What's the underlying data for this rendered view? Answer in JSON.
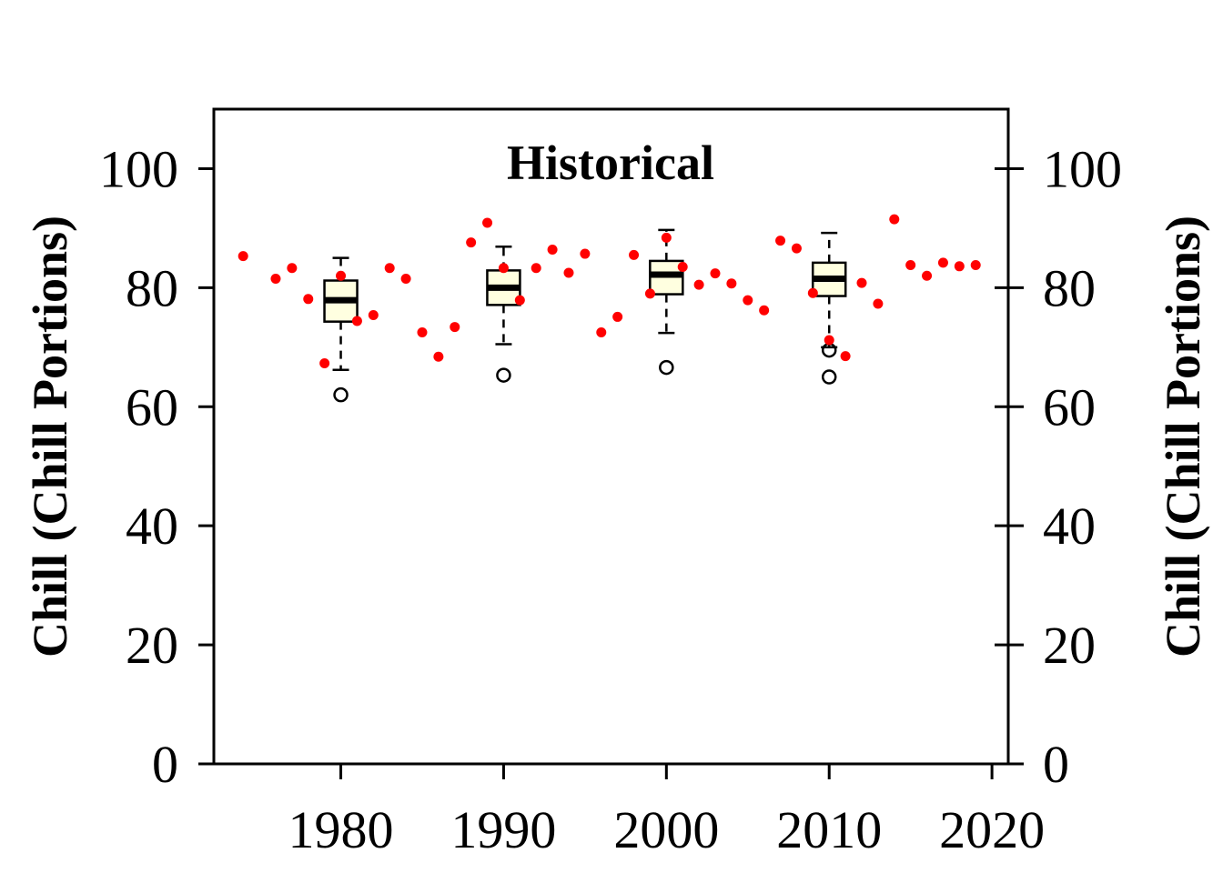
{
  "chart_data": {
    "type": "scatter",
    "title": "Historical",
    "ylabel": "Chill (Chill Portions)",
    "ylabel_right": "Chill (Chill Portions)",
    "xlabel": "",
    "xlim": [
      1972.2,
      2021.0
    ],
    "ylim": [
      0,
      110
    ],
    "x_ticks": [
      1980,
      1990,
      2000,
      2010,
      2020
    ],
    "y_ticks": [
      0,
      20,
      40,
      60,
      80,
      100
    ],
    "grid": false,
    "colors": {
      "points": "#ff0000",
      "box_fill": "#ffffe0",
      "axis": "#000000"
    },
    "series": [
      {
        "kind": "points",
        "x": [
          1974,
          1976,
          1977,
          1978,
          1979,
          1980,
          1981,
          1982,
          1983,
          1984,
          1985,
          1986,
          1987,
          1988,
          1989,
          1990,
          1991,
          1992,
          1993,
          1994,
          1995,
          1996,
          1997,
          1998,
          1999,
          2000,
          2001,
          2002,
          2003,
          2004,
          2005,
          2006,
          2007,
          2008,
          2009,
          2010,
          2011,
          2012,
          2013,
          2014,
          2015,
          2016,
          2017,
          2018,
          2019
        ],
        "y": [
          85.3,
          81.5,
          83.3,
          78.1,
          67.3,
          82.0,
          74.4,
          75.4,
          83.3,
          81.5,
          72.5,
          68.4,
          73.4,
          87.6,
          90.9,
          83.3,
          77.9,
          83.3,
          86.4,
          82.5,
          85.7,
          72.5,
          75.1,
          85.5,
          79.0,
          88.4,
          83.5,
          80.5,
          82.4,
          80.7,
          77.9,
          76.2,
          87.9,
          86.6,
          79.1,
          71.2,
          68.5,
          80.8,
          77.3,
          91.5,
          83.8,
          82.0,
          84.2,
          83.6,
          83.8
        ]
      },
      {
        "kind": "boxplot",
        "boxes": [
          {
            "x": 1980,
            "whisker_low": 66.2,
            "q1": 74.3,
            "median": 77.9,
            "q3": 81.2,
            "whisker_high": 85.0,
            "outliers": [
              62.0
            ]
          },
          {
            "x": 1990,
            "whisker_low": 70.5,
            "q1": 77.1,
            "median": 80.0,
            "q3": 82.9,
            "whisker_high": 86.9,
            "outliers": [
              65.3
            ]
          },
          {
            "x": 2000,
            "whisker_low": 72.4,
            "q1": 78.9,
            "median": 82.2,
            "q3": 84.5,
            "whisker_high": 89.7,
            "outliers": [
              66.6
            ]
          },
          {
            "x": 2010,
            "whisker_low": 70.0,
            "q1": 78.6,
            "median": 81.5,
            "q3": 84.2,
            "whisker_high": 89.2,
            "outliers": [
              69.5,
              65.0
            ]
          }
        ]
      }
    ]
  }
}
